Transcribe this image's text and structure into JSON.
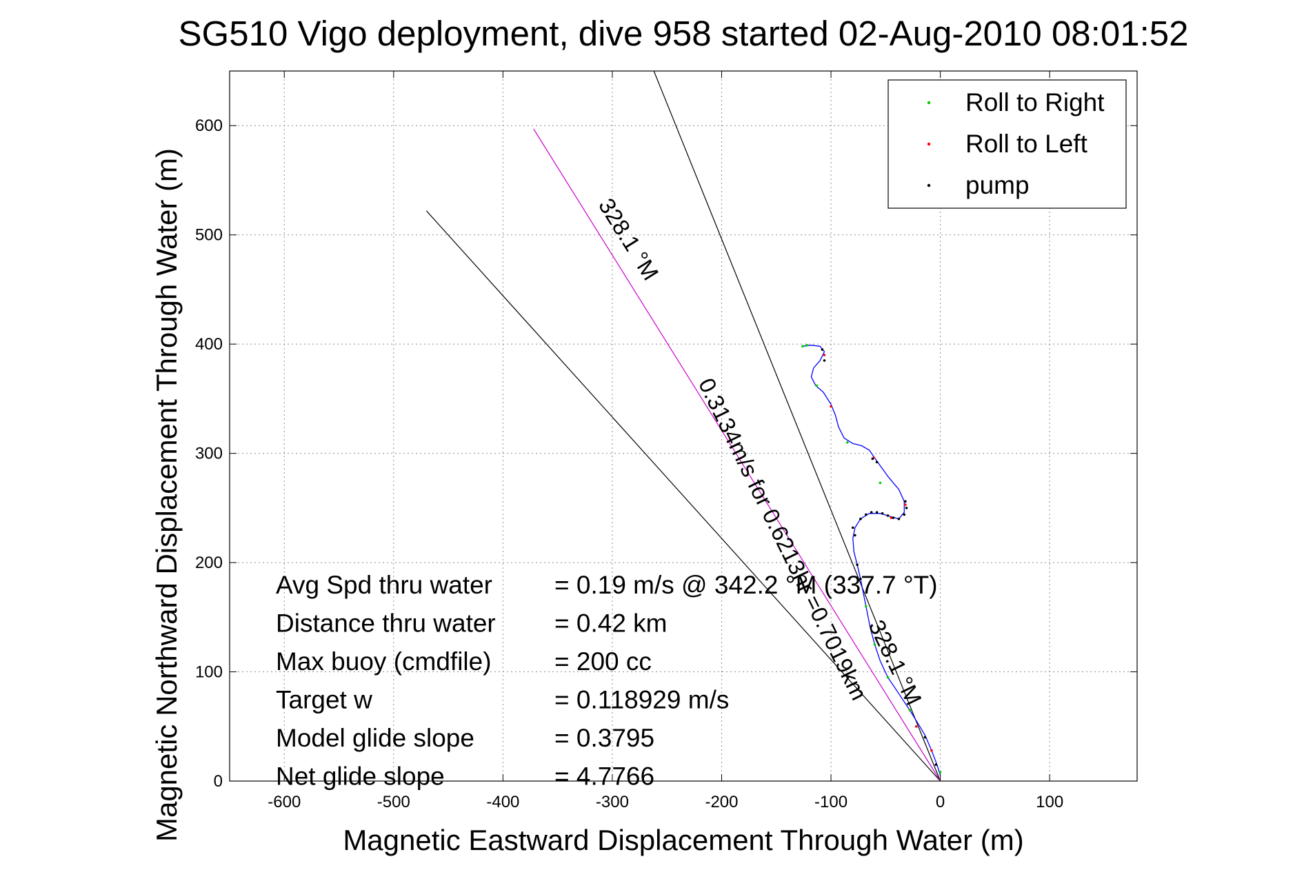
{
  "chart_data": {
    "type": "line",
    "title": "SG510 Vigo deployment, dive 958 started 02-Aug-2010 08:01:52",
    "xlabel": "Magnetic Eastward Displacement Through Water (m)",
    "ylabel": "Magnetic Northward Displacement Through Water (m)",
    "xlim": [
      -650,
      180
    ],
    "ylim": [
      0,
      650
    ],
    "xticks": [
      -600,
      -500,
      -400,
      -300,
      -200,
      -100,
      0,
      100
    ],
    "yticks": [
      0,
      100,
      200,
      300,
      400,
      500,
      600
    ],
    "grid": true,
    "legend_position": "top-right",
    "legend": [
      {
        "label": "Roll to Right",
        "color": "#00cc00"
      },
      {
        "label": "Roll to Left",
        "color": "#ff0000"
      },
      {
        "label": "pump",
        "color": "#000000"
      }
    ],
    "reference_lines": [
      {
        "color": "#000000",
        "points": [
          [
            0,
            0
          ],
          [
            -262,
            650
          ]
        ]
      },
      {
        "color": "#000000",
        "points": [
          [
            0,
            0
          ],
          [
            -470,
            522
          ]
        ]
      },
      {
        "color": "#cc00cc",
        "points": [
          [
            0,
            0
          ],
          [
            -372,
            597
          ]
        ]
      }
    ],
    "track": {
      "color": "#0000ff",
      "points": [
        [
          0,
          5
        ],
        [
          -3,
          15
        ],
        [
          -8,
          28
        ],
        [
          -14,
          42
        ],
        [
          -20,
          52
        ],
        [
          -28,
          65
        ],
        [
          -38,
          80
        ],
        [
          -48,
          95
        ],
        [
          -55,
          110
        ],
        [
          -60,
          125
        ],
        [
          -64,
          140
        ],
        [
          -67,
          155
        ],
        [
          -70,
          170
        ],
        [
          -73,
          185
        ],
        [
          -76,
          198
        ],
        [
          -79,
          210
        ],
        [
          -80,
          222
        ],
        [
          -78,
          232
        ],
        [
          -73,
          240
        ],
        [
          -65,
          245
        ],
        [
          -55,
          245
        ],
        [
          -45,
          242
        ],
        [
          -38,
          240
        ],
        [
          -33,
          246
        ],
        [
          -33,
          256
        ],
        [
          -38,
          267
        ],
        [
          -48,
          279
        ],
        [
          -58,
          293
        ],
        [
          -65,
          303
        ],
        [
          -72,
          307
        ],
        [
          -80,
          309
        ],
        [
          -88,
          314
        ],
        [
          -93,
          324
        ],
        [
          -96,
          335
        ],
        [
          -100,
          345
        ],
        [
          -107,
          356
        ],
        [
          -114,
          362
        ],
        [
          -118,
          370
        ],
        [
          -116,
          378
        ],
        [
          -110,
          385
        ],
        [
          -106,
          393
        ],
        [
          -110,
          398
        ],
        [
          -118,
          399
        ],
        [
          -126,
          398
        ]
      ]
    },
    "roll_right": [
      [
        -126,
        398
      ],
      [
        -122,
        399
      ],
      [
        -113,
        362
      ],
      [
        -85,
        310
      ],
      [
        -55,
        273
      ],
      [
        -73,
        240
      ],
      [
        -68,
        160
      ],
      [
        -60,
        125
      ],
      [
        -48,
        95
      ],
      [
        -28,
        65
      ],
      [
        0,
        8
      ]
    ],
    "roll_left": [
      [
        -106,
        390
      ],
      [
        -100,
        343
      ],
      [
        -61,
        296
      ],
      [
        -32,
        253
      ],
      [
        -45,
        241
      ],
      [
        -22,
        50
      ],
      [
        -8,
        28
      ]
    ],
    "pump": [
      [
        -80,
        232
      ],
      [
        -78,
        225
      ],
      [
        -73,
        240
      ],
      [
        -68,
        244
      ],
      [
        -63,
        246
      ],
      [
        -58,
        246
      ],
      [
        -53,
        245
      ],
      [
        -48,
        243
      ],
      [
        -43,
        241
      ],
      [
        -38,
        240
      ],
      [
        -33,
        244
      ],
      [
        -31,
        250
      ],
      [
        -32,
        256
      ],
      [
        -106,
        385
      ],
      [
        -108,
        395
      ],
      [
        -62,
        295
      ],
      [
        -58,
        292
      ],
      [
        -76,
        198
      ],
      [
        -73,
        185
      ],
      [
        -14,
        40
      ],
      [
        -4,
        15
      ]
    ],
    "line_annotations": [
      "328.1 °M",
      "0.3134m/s for 0.6213hr =0.7019km",
      "328.1 °M"
    ],
    "stats": [
      {
        "label": "Avg Spd thru water",
        "value": "=  0.19 m/s @ 342.2 °M (337.7 °T)"
      },
      {
        "label": "Distance thru water",
        "value": "=  0.42 km"
      },
      {
        "label": "Max buoy (cmdfile)",
        "value": "= 200 cc"
      },
      {
        "label": "Target w",
        "value": "= 0.118929 m/s"
      },
      {
        "label": "Model glide slope",
        "value": "= 0.3795"
      },
      {
        "label": "Net glide slope",
        "value": "= 4.7766"
      }
    ]
  }
}
